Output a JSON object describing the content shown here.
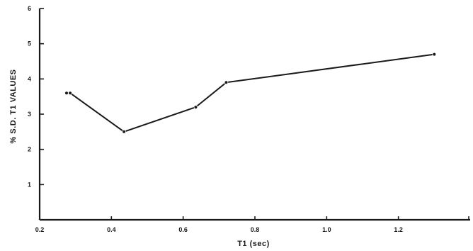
{
  "chart_data": {
    "type": "line",
    "xlabel": "T1 (sec)",
    "ylabel": "% S.D. T1 VALUES",
    "xlim": [
      0.2,
      1.4
    ],
    "ylim": [
      0,
      6
    ],
    "x_ticks": [
      0.2,
      0.4,
      0.6,
      0.8,
      1.0,
      1.2
    ],
    "x_tick_labels": [
      "0.2",
      "0.4",
      "0.6",
      "0.8",
      "1.0",
      "1.2"
    ],
    "y_ticks": [
      1,
      2,
      3,
      4,
      5,
      6
    ],
    "y_tick_labels": [
      "1",
      "2",
      "3",
      "4",
      "5",
      "6"
    ],
    "grid": false,
    "series": [
      {
        "x": [
          0.275,
          0.285,
          0.435,
          0.635,
          0.72,
          1.3
        ],
        "y": [
          3.6,
          3.6,
          2.5,
          3.2,
          3.9,
          4.7
        ]
      }
    ]
  }
}
